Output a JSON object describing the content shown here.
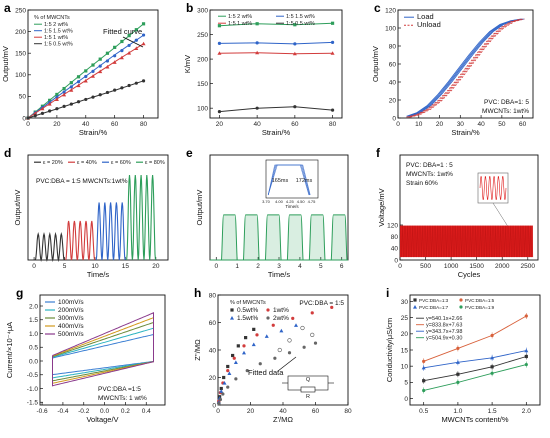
{
  "chart_data": [
    {
      "id": "a",
      "type": "line",
      "panel_label": "a",
      "xlabel": "Strain/%",
      "ylabel": "Output/mV",
      "xlim": [
        0,
        90
      ],
      "ylim": [
        0,
        250
      ],
      "xticks": [
        0,
        20,
        40,
        60,
        80
      ],
      "yticks": [
        0,
        50,
        100,
        150,
        200,
        250
      ],
      "legend_title": "% of MWCNTs",
      "legend_position": "top-left",
      "annotation": "Fitted curve",
      "series": [
        {
          "name": "1:5  2 wt%",
          "color": "#2e9e5b",
          "x": [
            0,
            20,
            40,
            60,
            80
          ],
          "y": [
            0,
            55,
            110,
            163,
            218
          ]
        },
        {
          "name": "1:5  1.5 wt%",
          "color": "#2f64c8",
          "x": [
            0,
            20,
            40,
            60,
            80
          ],
          "y": [
            0,
            49,
            97,
            146,
            192
          ]
        },
        {
          "name": "1:5  1 wt%",
          "color": "#d23c3c",
          "x": [
            0,
            20,
            40,
            60,
            80
          ],
          "y": [
            0,
            44,
            87,
            130,
            172
          ]
        },
        {
          "name": "1:5  0.5 wt%",
          "color": "#333333",
          "x": [
            0,
            20,
            40,
            60,
            80
          ],
          "y": [
            0,
            21,
            43,
            64,
            86
          ]
        }
      ]
    },
    {
      "id": "b",
      "type": "line",
      "panel_label": "b",
      "xlabel": "Strain/%",
      "ylabel": "K/mV",
      "xlim": [
        15,
        85
      ],
      "ylim": [
        80,
        300
      ],
      "xticks": [
        20,
        40,
        60,
        80
      ],
      "yticks": [
        100,
        150,
        200,
        250,
        300
      ],
      "legend_position": "top",
      "series": [
        {
          "name": "1:5  2 wt%",
          "color": "#2e9e5b",
          "x": [
            20,
            40,
            60,
            80
          ],
          "y": [
            268,
            272,
            270,
            273
          ]
        },
        {
          "name": "1:5  1.5 wt%",
          "color": "#2f64c8",
          "x": [
            20,
            40,
            60,
            80
          ],
          "y": [
            232,
            233,
            231,
            234
          ]
        },
        {
          "name": "1:5  1 wt%",
          "color": "#d23c3c",
          "x": [
            20,
            40,
            60,
            80
          ],
          "y": [
            212,
            213,
            211,
            212
          ]
        },
        {
          "name": "1:5  0.5 wt%",
          "color": "#333333",
          "x": [
            20,
            40,
            60,
            80
          ],
          "y": [
            93,
            100,
            103,
            96
          ]
        }
      ]
    },
    {
      "id": "c",
      "type": "line",
      "panel_label": "c",
      "xlabel": "Strain/%",
      "ylabel": "Output/mV",
      "xlim": [
        0,
        65
      ],
      "ylim": [
        0,
        120
      ],
      "xticks": [
        0,
        10,
        20,
        30,
        40,
        50,
        60
      ],
      "yticks": [
        0,
        20,
        40,
        60,
        80,
        100,
        120
      ],
      "legend_position": "top-left",
      "notes": [
        "PVC: DBA=1: 5",
        "MWCNTs: 1wt%"
      ],
      "series": [
        {
          "name": "Load",
          "color": "#2f64c8",
          "x": [
            5,
            10,
            15,
            20,
            25,
            30,
            35,
            40,
            45,
            50,
            55,
            60
          ],
          "y": [
            2,
            6,
            14,
            26,
            40,
            55,
            70,
            84,
            96,
            104,
            108,
            110
          ]
        },
        {
          "name": "Unload",
          "color": "#d23c3c",
          "x": [
            5,
            10,
            15,
            20,
            25,
            30,
            35,
            40,
            45,
            50,
            55,
            60
          ],
          "y": [
            1,
            4,
            10,
            19,
            31,
            45,
            60,
            75,
            89,
            100,
            107,
            110
          ]
        }
      ]
    },
    {
      "id": "d",
      "type": "line",
      "panel_label": "d",
      "xlabel": "Time/s",
      "ylabel": "Output/mV",
      "xlim": [
        -1,
        22
      ],
      "ylim": [
        0,
        210
      ],
      "xticks": [
        0,
        5,
        10,
        15,
        20
      ],
      "yticks": [],
      "legend_position": "top",
      "notes": [
        "PVC:DBA = 1:5   MWCNTs:1wt%"
      ],
      "pulse_series": [
        {
          "name": "ε = 20%",
          "color": "#333333",
          "start": 0.2,
          "count": 5,
          "period": 0.95,
          "amplitude": 52
        },
        {
          "name": "ε = 40%",
          "color": "#d23c3c",
          "start": 5.2,
          "count": 5,
          "period": 0.95,
          "amplitude": 78
        },
        {
          "name": "ε = 60%",
          "color": "#2f64c8",
          "start": 10.2,
          "count": 5,
          "period": 0.95,
          "amplitude": 115
        },
        {
          "name": "ε = 80%",
          "color": "#2e9e5b",
          "start": 15.2,
          "count": 5,
          "period": 0.95,
          "amplitude": 170
        }
      ]
    },
    {
      "id": "e",
      "type": "line",
      "panel_label": "e",
      "xlabel": "Time/s",
      "ylabel": "Output/mV",
      "xlim": [
        -0.3,
        6.3
      ],
      "ylim": [
        0,
        100
      ],
      "xticks": [
        0,
        1,
        2,
        3,
        4,
        5,
        6
      ],
      "yticks": [],
      "pulses": {
        "color": "#2e9e5b",
        "starts": [
          0.25,
          1.3,
          2.35,
          3.4,
          4.45,
          5.5
        ],
        "width": 0.75,
        "amplitude": 43
      },
      "inset": {
        "xlabel": "Time/s",
        "xlim": [
          3.7,
          4.9
        ],
        "xticks": [
          3.7,
          4.0,
          4.25,
          4.5,
          4.75,
          5.0
        ],
        "xticklabels": [
          "3.70",
          "4.00",
          "4.25",
          "4.50",
          "4.75",
          "5.00"
        ],
        "annotations": [
          "165ms",
          "172ms"
        ],
        "color": "#2f64c8"
      }
    },
    {
      "id": "f",
      "type": "line",
      "panel_label": "f",
      "xlabel": "Cycles",
      "ylabel": "Voltage/mV",
      "xlim": [
        0,
        2700
      ],
      "ylim": [
        0,
        360
      ],
      "xticks": [
        0,
        500,
        1000,
        1500,
        2000,
        2500
      ],
      "yticks": [
        0,
        40,
        80,
        120
      ],
      "notes": [
        "PVC: DBA=1 : 5",
        "MWCNTs: 1wt%",
        "Strain 60%"
      ],
      "signal": {
        "color": "#e01d1d",
        "cycles": 2600,
        "min": 10,
        "max": 118
      }
    },
    {
      "id": "g",
      "type": "line",
      "panel_label": "g",
      "xlabel": "Voltage/V",
      "ylabel": "Current/×10⁻⁴μA",
      "xlim": [
        -0.62,
        0.58
      ],
      "ylim": [
        -1.6,
        2.4
      ],
      "xticks": [
        -0.6,
        -0.4,
        -0.2,
        0.0,
        0.2,
        0.4
      ],
      "xticklabels": [
        "-0.6",
        "-0.4",
        "-0.2",
        "0.0",
        "0.2",
        "0.4"
      ],
      "yticks": [
        -1.5,
        -1.0,
        -0.5,
        0.0,
        0.5,
        1.0,
        1.5,
        2.0
      ],
      "yticklabels": [
        "-1.5",
        "-1.0",
        "-0.5",
        "0.0",
        "0.5",
        "1.0",
        "1.5",
        "2.0"
      ],
      "legend_position": "top-left",
      "notes": [
        "PVC:DBA =1:5",
        "MWCNTs: 1 wt%"
      ],
      "series": [
        {
          "name": "100mV/s",
          "color": "#3b7fd3",
          "scale": 0.55
        },
        {
          "name": "200mV/s",
          "color": "#2bb3c0",
          "scale": 0.68
        },
        {
          "name": "300mV/s",
          "color": "#6a8b3a",
          "scale": 0.8
        },
        {
          "name": "400mV/s",
          "color": "#d39a1d",
          "scale": 0.9
        },
        {
          "name": "500mV/s",
          "color": "#8a3a8c",
          "scale": 1.0
        }
      ]
    },
    {
      "id": "h",
      "type": "scatter",
      "panel_label": "h",
      "xlabel": "Z'/MΩ",
      "ylabel": "Z''/MΩ",
      "xlim": [
        0,
        80
      ],
      "ylim": [
        0,
        80
      ],
      "xticks": [
        0,
        20,
        40,
        60,
        80
      ],
      "yticks": [
        0,
        20,
        40,
        60,
        80
      ],
      "legend_title": "% of MWCNTs",
      "legend_position": "top-left",
      "annotation": "Fitted data",
      "notes": [
        "PVC:DBA = 1:5"
      ],
      "circuit_labels": [
        "Q",
        "R"
      ],
      "series": [
        {
          "name": "0.5wt%",
          "color": "#333333",
          "x": [
            0.5,
            1,
            2,
            3.5,
            6,
            9,
            12.5,
            17,
            22
          ],
          "y": [
            2,
            6,
            12,
            20,
            28,
            36,
            43,
            49,
            55
          ]
        },
        {
          "name": "1wt%",
          "color": "#d23c3c",
          "x": [
            0.5,
            1.5,
            3,
            6,
            10,
            16,
            24,
            34,
            46,
            58,
            70
          ],
          "y": [
            3,
            9,
            16,
            25,
            34,
            43,
            51,
            58,
            63,
            67,
            71
          ]
        },
        {
          "name": "1.5wt%",
          "color": "#2f64c8",
          "x": [
            0.5,
            1,
            2,
            4,
            7,
            11,
            16,
            22,
            30,
            39,
            48
          ],
          "y": [
            2,
            5,
            10,
            16,
            23,
            31,
            38,
            44,
            50,
            54,
            58
          ]
        },
        {
          "name": "2wt%",
          "color": "#666666",
          "x": [
            0.5,
            1.5,
            3,
            6,
            11,
            18,
            26,
            35,
            44,
            53,
            60
          ],
          "y": [
            1,
            4,
            8,
            13,
            19,
            25,
            30,
            34,
            38,
            42,
            45
          ]
        }
      ]
    },
    {
      "id": "i",
      "type": "scatter",
      "panel_label": "i",
      "xlabel": "MWCNTs content/%",
      "ylabel": "Conductivity/μS/cm",
      "xlim": [
        0.3,
        2.2
      ],
      "ylim": [
        -2,
        32
      ],
      "xticks": [
        0.5,
        1.0,
        1.5,
        2.0
      ],
      "xticklabels": [
        "0.5",
        "1.0",
        "1.5",
        "2.0"
      ],
      "yticks": [
        0,
        5,
        10,
        15,
        20,
        25,
        30
      ],
      "legend_position": "top",
      "equations": [
        "y=540.1x+2.66",
        "y=833.8x+7.63",
        "y=343.7x+7.98",
        "y=504.9x+0.30"
      ],
      "series": [
        {
          "name": "PVC:DBA=1:3",
          "color": "#333333",
          "x": [
            0.5,
            1.0,
            1.5,
            2.0
          ],
          "y": [
            5.5,
            7.5,
            9.8,
            13.0
          ]
        },
        {
          "name": "PVC:DBA=1:5",
          "color": "#d8603a",
          "x": [
            0.5,
            1.0,
            1.5,
            2.0
          ],
          "y": [
            11.5,
            15.5,
            19.5,
            25.5
          ]
        },
        {
          "name": "PVC:DBA=1:7",
          "color": "#2f64c8",
          "x": [
            0.5,
            1.0,
            1.5,
            2.0
          ],
          "y": [
            9.5,
            11.2,
            12.6,
            14.8
          ]
        },
        {
          "name": "PVC:DBA=1:9",
          "color": "#2e9e5b",
          "x": [
            0.5,
            1.0,
            1.5,
            2.0
          ],
          "y": [
            2.5,
            5.0,
            7.8,
            10.5
          ]
        }
      ]
    }
  ]
}
